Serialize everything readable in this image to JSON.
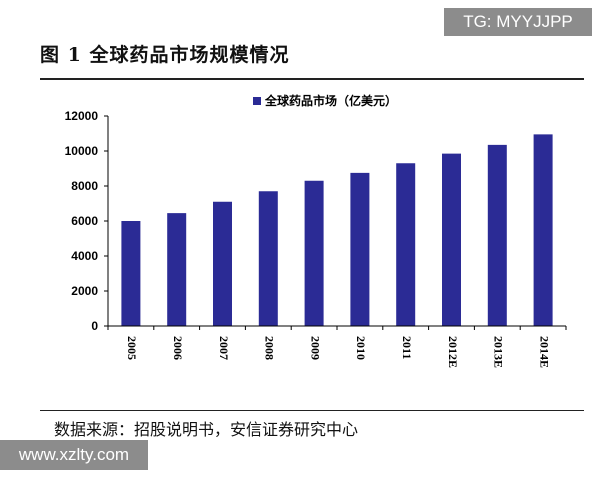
{
  "watermark_top": "TG: MYYJJPP",
  "figure_title": "图 1 全球药品市场规模情况",
  "source_note": "数据来源：招股说明书，安信证券研究中心",
  "watermark_bottom": "www.xzlty.com",
  "colors": {
    "bar": "#2b2b95",
    "axis": "#000000"
  },
  "chart_data": {
    "type": "bar",
    "categories": [
      "2005",
      "2006",
      "2007",
      "2008",
      "2009",
      "2010",
      "2011",
      "2012E",
      "2013E",
      "2014E"
    ],
    "series": [
      {
        "name": "全球药品市场（亿美元）",
        "values": [
          6000,
          6450,
          7100,
          7700,
          8300,
          8750,
          9300,
          9850,
          10350,
          10950
        ]
      }
    ],
    "yticks": [
      "0",
      "2000",
      "4000",
      "6000",
      "8000",
      "10000",
      "12000"
    ],
    "ylim": [
      0,
      12000
    ],
    "grid": false,
    "legend": "top"
  }
}
